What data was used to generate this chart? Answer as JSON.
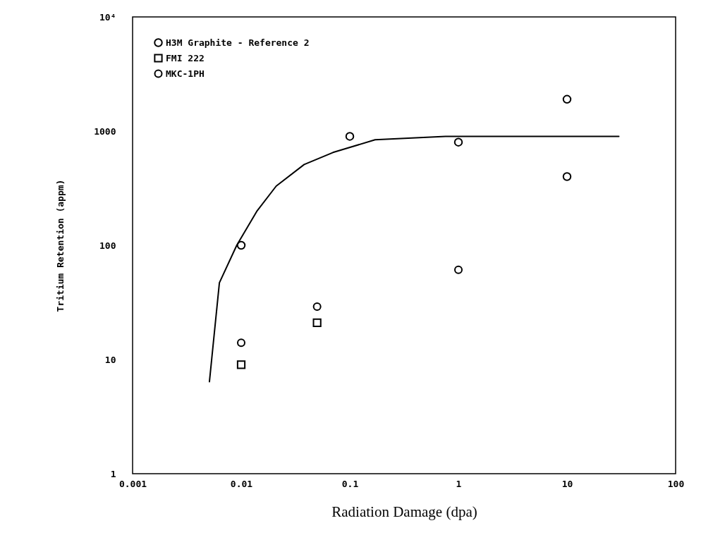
{
  "chart_data": {
    "type": "scatter",
    "xlabel": "Radiation Damage (dpa)",
    "ylabel": "Tritium Retention (appm)",
    "log": "xy",
    "xlim": [
      0.001,
      100
    ],
    "ylim": [
      1,
      10000
    ],
    "xticks": [
      0.001,
      0.01,
      0.1,
      1,
      10,
      100
    ],
    "yticks": [
      1,
      10,
      100,
      1000,
      {
        "value": 10000,
        "label": "10⁴"
      }
    ],
    "grid": false,
    "legend": "top left",
    "series": [
      {
        "name": "H3M Graphite - Reference 2",
        "color": "#000000",
        "marker": "circle",
        "x": [
          0.01,
          0.1,
          1,
          10,
          10
        ],
        "values": [
          100,
          900,
          800,
          1900,
          400
        ]
      },
      {
        "name": "FMI 222",
        "color": "#000000",
        "marker": "square",
        "x": [
          0.01,
          0.05
        ],
        "values": [
          9,
          21
        ]
      },
      {
        "name": "MKC-1PH",
        "color": "#000000",
        "marker": "circle",
        "x": [
          0.01,
          0.05,
          1
        ],
        "values": [
          14,
          29,
          61
        ]
      },
      {
        "type": "line",
        "color": "#000000",
        "line_style": "solid",
        "x": [
          0.0051,
          0.0063,
          0.0091,
          0.0139,
          0.021,
          0.038,
          0.07,
          0.171,
          0.76,
          30
        ],
        "values": [
          6.4,
          47,
          100,
          198,
          330,
          510,
          650,
          840,
          900,
          900
        ]
      }
    ]
  }
}
